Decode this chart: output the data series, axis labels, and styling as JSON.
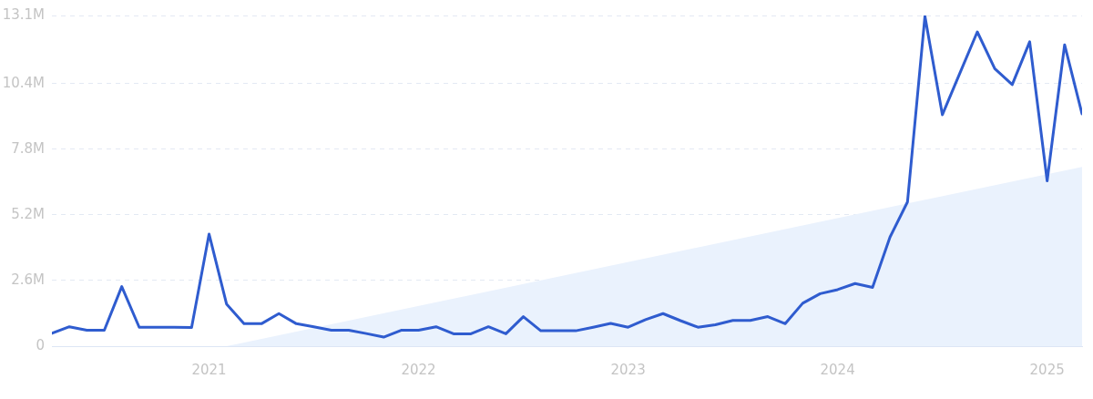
{
  "chart_data": {
    "type": "line",
    "x": [
      "2020-04",
      "2020-05",
      "2020-06",
      "2020-07",
      "2020-08",
      "2020-09",
      "2020-10",
      "2020-11",
      "2020-12",
      "2021-01",
      "2021-02",
      "2021-03",
      "2021-04",
      "2021-05",
      "2021-06",
      "2021-07",
      "2021-08",
      "2021-09",
      "2021-10",
      "2021-11",
      "2021-12",
      "2022-01",
      "2022-02",
      "2022-03",
      "2022-04",
      "2022-05",
      "2022-06",
      "2022-07",
      "2022-08",
      "2022-09",
      "2022-10",
      "2022-11",
      "2022-12",
      "2023-01",
      "2023-02",
      "2023-03",
      "2023-04",
      "2023-05",
      "2023-06",
      "2023-07",
      "2023-08",
      "2023-09",
      "2023-10",
      "2023-11",
      "2023-12",
      "2024-01",
      "2024-02",
      "2024-03",
      "2024-04",
      "2024-05",
      "2024-06",
      "2024-07",
      "2024-08",
      "2024-09",
      "2024-10",
      "2024-11",
      "2024-12",
      "2025-01",
      "2025-02",
      "2025-03"
    ],
    "series": [
      {
        "type": "area",
        "color": "#eaf2fd",
        "x": [
          "2021-02",
          "2025-03"
        ],
        "values": [
          0,
          7.1
        ]
      },
      {
        "color": "#2f5ccf",
        "values": [
          0.51,
          0.77,
          0.63,
          0.63,
          2.36,
          0.75,
          0.75,
          0.75,
          0.74,
          4.44,
          1.67,
          0.89,
          0.89,
          1.29,
          0.89,
          0.77,
          0.63,
          0.63,
          0.5,
          0.36,
          0.63,
          0.63,
          0.77,
          0.49,
          0.49,
          0.77,
          0.49,
          1.17,
          0.61,
          0.61,
          0.61,
          0.75,
          0.9,
          0.75,
          1.05,
          1.29,
          1.01,
          0.75,
          0.85,
          1.02,
          1.02,
          1.17,
          0.89,
          1.7,
          2.08,
          2.24,
          2.48,
          2.33,
          4.32,
          5.71,
          13.07,
          9.17,
          10.81,
          12.45,
          10.99,
          10.36,
          12.06,
          6.55,
          11.94,
          9.2
        ]
      }
    ],
    "xlim": [
      "2020-04",
      "2025-03"
    ],
    "xticks": [
      "2021",
      "2022",
      "2023",
      "2024",
      "2025"
    ],
    "ylim": [
      0,
      13.1
    ],
    "yticks": [
      {
        "value": 0,
        "label": "0"
      },
      {
        "value": 2.6,
        "label": "2.6M"
      },
      {
        "value": 5.2,
        "label": "5.2M"
      },
      {
        "value": 7.8,
        "label": "7.8M"
      },
      {
        "value": 10.4,
        "label": "10.4M"
      },
      {
        "value": 13.1,
        "label": "13.1M"
      }
    ],
    "grid": "y",
    "marker": "none",
    "line_style": "solid",
    "legend": false
  }
}
